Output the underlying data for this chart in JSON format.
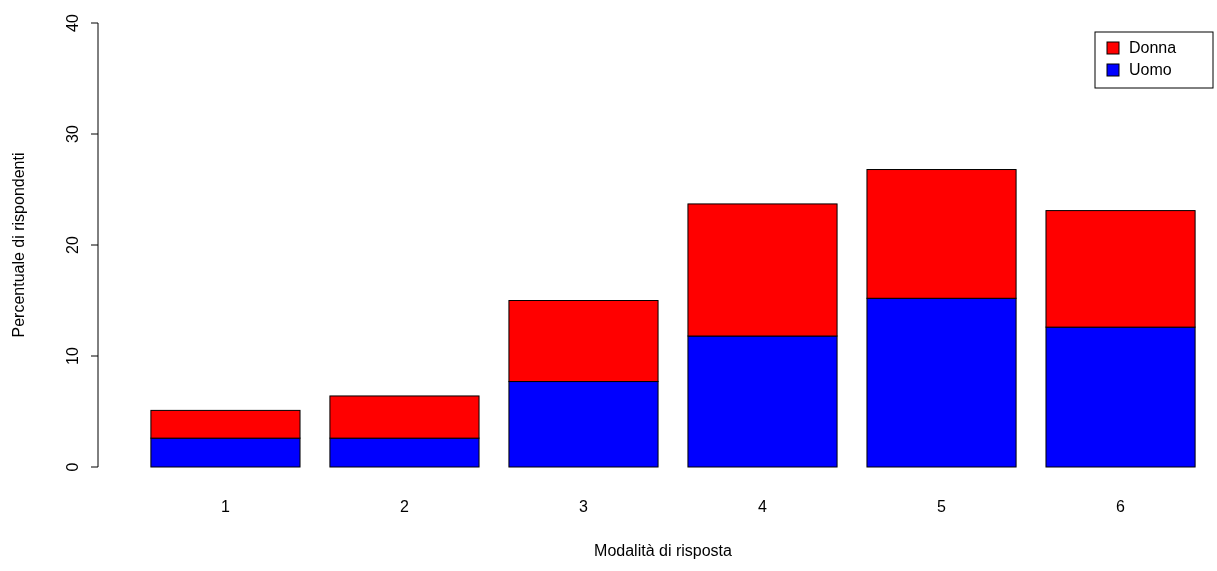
{
  "chart_data": {
    "type": "bar",
    "stacked": true,
    "xlabel": "Modalità di risposta",
    "ylabel": "Percentuale di rispondenti",
    "categories": [
      "1",
      "2",
      "3",
      "4",
      "5",
      "6"
    ],
    "series": [
      {
        "name": "Uomo",
        "color": "#0000ff",
        "values": [
          2.6,
          2.6,
          7.7,
          11.8,
          15.2,
          12.6
        ]
      },
      {
        "name": "Donna",
        "color": "#ff0000",
        "values": [
          2.5,
          3.8,
          7.3,
          11.9,
          11.6,
          10.5
        ]
      }
    ],
    "ylim": [
      0,
      40
    ],
    "yticks": [
      0,
      10,
      20,
      30,
      40
    ],
    "legend": "top right"
  }
}
